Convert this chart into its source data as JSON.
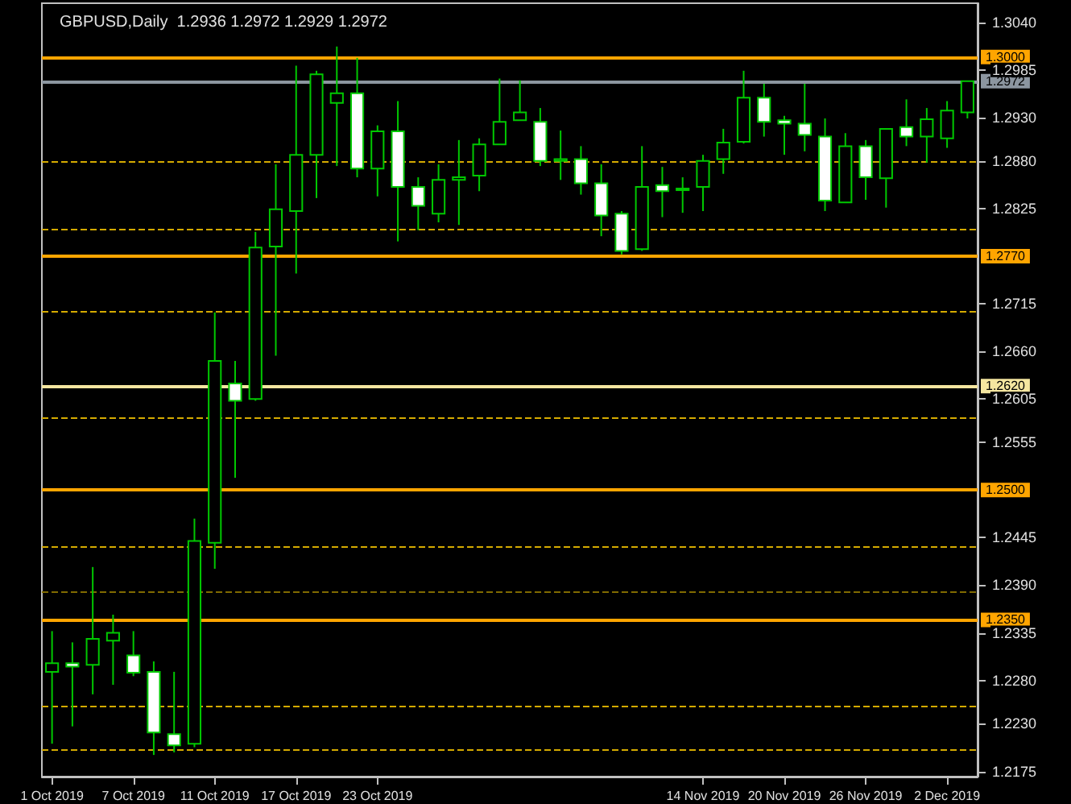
{
  "chart_data": {
    "type": "candlestick",
    "title": "GBPUSD,Daily  1.2936 1.2972 1.2929 1.2972",
    "color": "#00c800",
    "categories": [
      "1 Oct 2019",
      null,
      null,
      null,
      "7 Oct 2019",
      null,
      null,
      null,
      "11 Oct 2019",
      null,
      null,
      null,
      "17 Oct 2019",
      null,
      null,
      null,
      "23 Oct 2019",
      null,
      null,
      null,
      null,
      null,
      null,
      null,
      null,
      null,
      null,
      null,
      null,
      null,
      null,
      null,
      "14 Nov 2019",
      null,
      null,
      null,
      "20 Nov 2019",
      null,
      null,
      null,
      "26 Nov 2019",
      null,
      null,
      null,
      "2 Dec 2019",
      null
    ],
    "ohlc": [
      [
        1.229,
        1.2337,
        1.2207,
        1.23
      ],
      [
        1.23,
        1.2324,
        1.2227,
        1.2296
      ],
      [
        1.2298,
        1.2411,
        1.2264,
        1.2328
      ],
      [
        1.2326,
        1.2356,
        1.2275,
        1.2335
      ],
      [
        1.2309,
        1.2337,
        1.2285,
        1.2289
      ],
      [
        1.229,
        1.2302,
        1.2194,
        1.222
      ],
      [
        1.2218,
        1.229,
        1.2197,
        1.2205
      ],
      [
        1.2207,
        1.2467,
        1.2203,
        1.2441
      ],
      [
        1.2439,
        1.2705,
        1.2409,
        1.2649
      ],
      [
        1.2623,
        1.2649,
        1.2514,
        1.2603
      ],
      [
        1.2605,
        1.2798,
        1.2603,
        1.278
      ],
      [
        1.2781,
        1.2876,
        1.2655,
        1.2824
      ],
      [
        1.2822,
        1.299,
        1.275,
        1.2887
      ],
      [
        1.2887,
        1.2984,
        1.2837,
        1.298
      ],
      [
        1.2947,
        1.3012,
        1.2874,
        1.2958
      ],
      [
        1.2958,
        1.2999,
        1.2861,
        1.2871
      ],
      [
        1.2871,
        1.2921,
        1.2839,
        1.2914
      ],
      [
        1.2914,
        1.2949,
        1.2787,
        1.285
      ],
      [
        1.285,
        1.2861,
        1.28,
        1.2828
      ],
      [
        1.2819,
        1.2876,
        1.2809,
        1.2858
      ],
      [
        1.2858,
        1.2904,
        1.2806,
        1.2861
      ],
      [
        1.2863,
        1.2906,
        1.2845,
        1.2899
      ],
      [
        1.2899,
        1.2975,
        1.2899,
        1.2925
      ],
      [
        1.2927,
        1.2973,
        1.2927,
        1.2936
      ],
      [
        1.2925,
        1.2941,
        1.2874,
        1.288
      ],
      [
        1.288,
        1.2915,
        1.2858,
        1.2882
      ],
      [
        1.2882,
        1.2897,
        1.2841,
        1.2854
      ],
      [
        1.2854,
        1.2876,
        1.2793,
        1.2817
      ],
      [
        1.2819,
        1.2822,
        1.2772,
        1.2776
      ],
      [
        1.2778,
        1.2897,
        1.2776,
        1.285
      ],
      [
        1.2852,
        1.2873,
        1.2815,
        1.2845
      ],
      [
        1.2847,
        1.2861,
        1.282,
        1.2848
      ],
      [
        1.285,
        1.2887,
        1.2822,
        1.288
      ],
      [
        1.2882,
        1.2917,
        1.2865,
        1.2901
      ],
      [
        1.2902,
        1.2984,
        1.29,
        1.2953
      ],
      [
        1.2953,
        1.2969,
        1.2908,
        1.2925
      ],
      [
        1.2927,
        1.2932,
        1.2887,
        1.2923
      ],
      [
        1.2923,
        1.2969,
        1.2891,
        1.291
      ],
      [
        1.2908,
        1.2929,
        1.2822,
        1.2834
      ],
      [
        1.2832,
        1.2912,
        1.2832,
        1.2897
      ],
      [
        1.2897,
        1.2904,
        1.2835,
        1.2861
      ],
      [
        1.286,
        1.2917,
        1.2826,
        1.2917
      ],
      [
        1.2919,
        1.2951,
        1.2897,
        1.2908
      ],
      [
        1.2908,
        1.2941,
        1.2878,
        1.2928
      ],
      [
        1.2906,
        1.2949,
        1.2895,
        1.2938
      ],
      [
        1.2936,
        1.2972,
        1.2929,
        1.2972
      ]
    ],
    "ylim": [
      1.2169,
      1.3062
    ],
    "yticks": [
      {
        "value": 1.304,
        "label": "1.3040"
      },
      {
        "value": 1.2985,
        "label": "1.2985"
      },
      {
        "value": 1.293,
        "label": "1.2930"
      },
      {
        "value": 1.288,
        "label": "1.2880"
      },
      {
        "value": 1.2825,
        "label": "1.2825"
      },
      {
        "value": 1.2715,
        "label": "1.2715"
      },
      {
        "value": 1.266,
        "label": "1.2660"
      },
      {
        "value": 1.2605,
        "label": "1.2605"
      },
      {
        "value": 1.2555,
        "label": "1.2555"
      },
      {
        "value": 1.2445,
        "label": "1.2445"
      },
      {
        "value": 1.239,
        "label": "1.2390"
      },
      {
        "value": 1.2335,
        "label": "1.2335"
      },
      {
        "value": 1.228,
        "label": "1.2280"
      },
      {
        "value": 1.223,
        "label": "1.2230"
      },
      {
        "value": 1.2175,
        "label": "1.2175"
      }
    ],
    "grid": false,
    "ref_lines": [
      {
        "axis": "y",
        "value": 1.3,
        "label": "1.3000",
        "color": "#ffa500",
        "line_style": "solid"
      },
      {
        "axis": "y",
        "value": 1.2972,
        "label": "1.2972",
        "color": "#8c96a0",
        "line_style": "solid"
      },
      {
        "axis": "y",
        "value": 1.277,
        "label": "1.2770",
        "color": "#ffa500",
        "line_style": "solid"
      },
      {
        "axis": "y",
        "value": 1.262,
        "label": "1.2620",
        "color": "#f5e6a0",
        "line_style": "solid"
      },
      {
        "axis": "y",
        "value": 1.25,
        "label": "1.2500",
        "color": "#ffa500",
        "line_style": "solid"
      },
      {
        "axis": "y",
        "value": 1.235,
        "label": "1.2350",
        "color": "#ffa500",
        "line_style": "solid"
      },
      {
        "axis": "y",
        "value": 1.288,
        "label": null,
        "color": "#d4aa00",
        "line_style": "dashed"
      },
      {
        "axis": "y",
        "value": 1.2802,
        "label": null,
        "color": "#d4aa00",
        "line_style": "dashed"
      },
      {
        "axis": "y",
        "value": 1.2707,
        "label": null,
        "color": "#d4aa00",
        "line_style": "dashed"
      },
      {
        "axis": "y",
        "value": 1.2584,
        "label": null,
        "color": "#d4aa00",
        "line_style": "dashed"
      },
      {
        "axis": "y",
        "value": 1.2434,
        "label": null,
        "color": "#d4aa00",
        "line_style": "dashed"
      },
      {
        "axis": "y",
        "value": 1.2382,
        "label": null,
        "color": "#806a00",
        "line_style": "dashed"
      },
      {
        "axis": "y",
        "value": 1.2251,
        "label": null,
        "color": "#d4aa00",
        "line_style": "dashed"
      },
      {
        "axis": "y",
        "value": 1.2201,
        "label": null,
        "color": "#d4aa00",
        "line_style": "dashed"
      }
    ]
  }
}
